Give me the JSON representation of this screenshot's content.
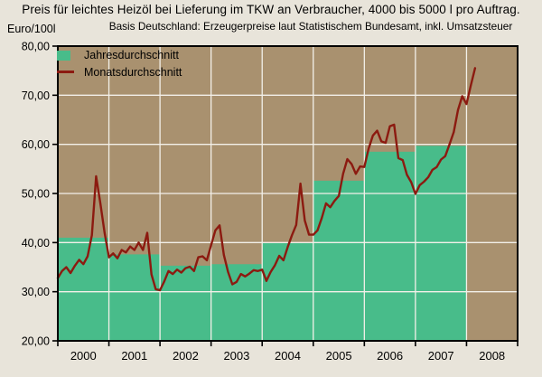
{
  "colors": {
    "figure_bg": "#e8e4da",
    "plot_bg": "#a9916f",
    "annual_bar_green": "#48bc8a",
    "monthly_line_red": "#8c1a10",
    "gridline": "#f3f0e9",
    "axis": "#000000",
    "text": "#000000"
  },
  "chart_data": {
    "type": "combo (annual step-area bars + monthly line)",
    "title": "Preis für leichtes Heizöl bei Lieferung im TKW an Verbraucher, 4000 bis 5000 l pro Auftrag.",
    "subtitle": "Basis Deutschland: Erzeugerpreise laut Statistischem Bundesamt, inkl. Umsatzsteuer",
    "y_unit": "Euro/100l",
    "ylim": [
      20,
      80
    ],
    "y_tick_step": 10,
    "y_tick_labels": [
      "20,00",
      "30,00",
      "40,00",
      "50,00",
      "60,00",
      "70,00",
      "80,00"
    ],
    "x_year_labels": [
      "2000",
      "2001",
      "2002",
      "2003",
      "2004",
      "2005",
      "2006",
      "2007",
      "2008"
    ],
    "grid": true,
    "legend_position": "top-left inside plot",
    "annual": {
      "name": "Jahresdurchschnitt",
      "render": "full-year-wide green bars from baseline 20",
      "years": [
        2000,
        2001,
        2002,
        2003,
        2004,
        2005,
        2006,
        2007
      ],
      "values": [
        41.0,
        37.6,
        35.3,
        35.6,
        40.0,
        52.6,
        58.5,
        59.7
      ]
    },
    "monthly": {
      "name": "Monatsdurchschnitt",
      "render": "dark red line",
      "start_month": "2000-01",
      "end_month": "2008-03",
      "values": [
        32.8,
        34.2,
        35.0,
        33.8,
        35.3,
        36.5,
        35.6,
        37.2,
        41.5,
        53.5,
        48.0,
        42.0,
        37.0,
        37.8,
        36.8,
        38.5,
        38.0,
        39.2,
        38.5,
        40.0,
        38.5,
        42.0,
        33.5,
        30.5,
        30.3,
        32.1,
        34.2,
        33.6,
        34.5,
        33.9,
        34.8,
        35.1,
        34.2,
        37.0,
        37.2,
        36.4,
        39.5,
        42.5,
        43.5,
        37.5,
        34.0,
        31.5,
        32.0,
        33.6,
        33.1,
        33.7,
        34.4,
        34.2,
        34.5,
        32.2,
        34.0,
        35.4,
        37.3,
        36.4,
        39.1,
        41.5,
        43.6,
        52.0,
        44.5,
        41.6,
        41.6,
        42.5,
        45.0,
        48.0,
        47.2,
        48.5,
        49.5,
        54.0,
        57.0,
        56.0,
        54.0,
        55.5,
        55.4,
        59.1,
        61.8,
        62.8,
        60.6,
        60.3,
        63.7,
        64.0,
        57.2,
        56.8,
        53.8,
        52.3,
        49.9,
        51.7,
        52.4,
        53.3,
        54.8,
        55.4,
        56.9,
        57.6,
        60.0,
        62.5,
        67.0,
        69.8,
        68.2,
        72.0,
        75.5
      ]
    }
  }
}
